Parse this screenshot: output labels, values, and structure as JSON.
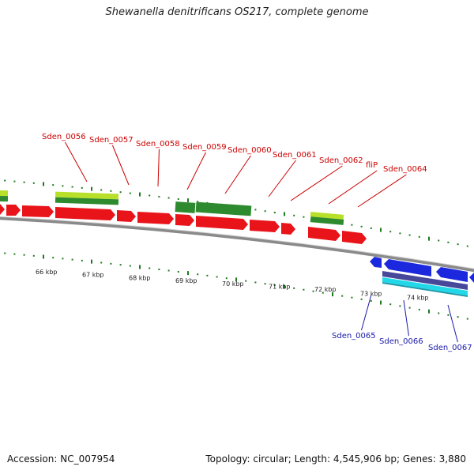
{
  "title": "Shewanella denitrificans OS217, complete genome",
  "footer": {
    "accession_label": "Accession: NC_007954",
    "topology_label": "Topology: circular; Length: 4,545,906 bp; Genes: 3,880"
  },
  "colors": {
    "forward_label": "#cc0000",
    "reverse_label": "#1a1aaa",
    "cds": "#e8141a",
    "reverse_cds": "#1c28dd",
    "gene_light": "#b8e02a",
    "gene_dark": "#2e8a2e",
    "reverse_gene_mid": "#48489a",
    "reverse_gene_cyan": "#22d8e8",
    "backbone": "#8a8a8a",
    "tick": "#1f7a1f"
  },
  "tick_labels": [
    "66 kbp",
    "67 kbp",
    "68 kbp",
    "69 kbp",
    "70 kbp",
    "71 kbp",
    "72 kbp",
    "73 kbp",
    "74 kbp"
  ],
  "forward_genes": [
    "Sden_0056",
    "Sden_0057",
    "Sden_0058",
    "Sden_0059",
    "Sden_0060",
    "Sden_0061",
    "Sden_0062",
    "fliP",
    "Sden_0064"
  ],
  "reverse_genes": [
    "Sden_0065",
    "Sden_0066",
    "Sden_0067"
  ]
}
